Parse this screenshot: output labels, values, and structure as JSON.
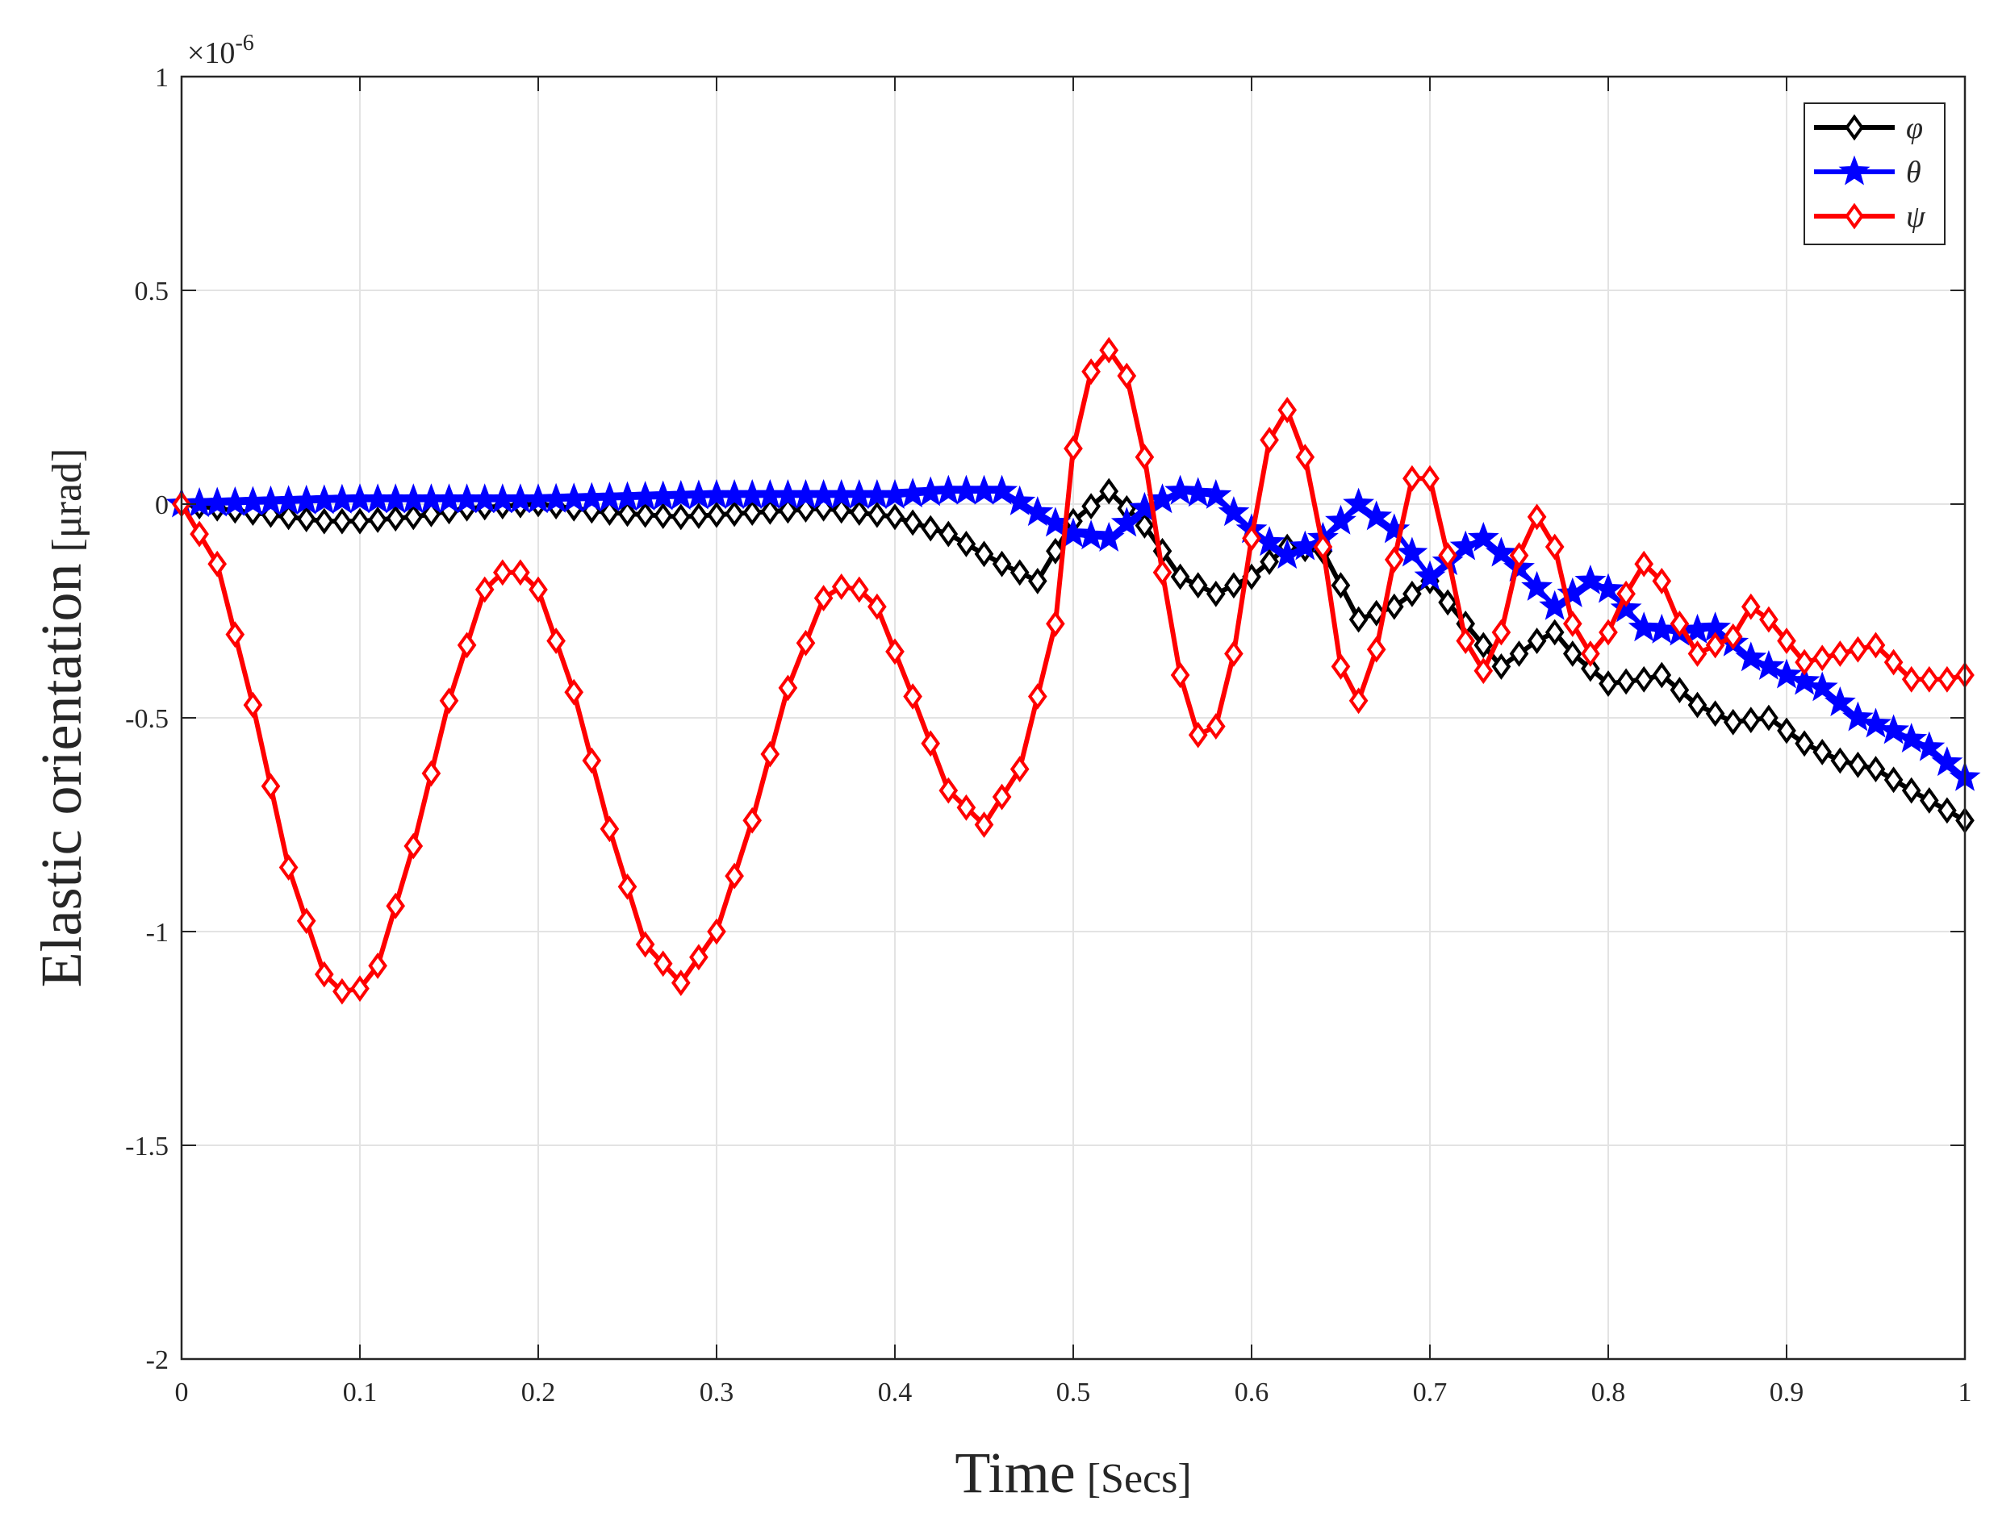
{
  "chart_data": {
    "type": "line",
    "title": "",
    "xlabel_main": "Time",
    "xlabel_unit": "[Secs]",
    "ylabel_main": "Elastic orientation",
    "ylabel_unit": "[μrad]",
    "exponent_label": "×10",
    "exponent_power": "-6",
    "xlim": [
      0,
      1
    ],
    "ylim": [
      -2,
      1
    ],
    "xticks": [
      0,
      0.1,
      0.2,
      0.3,
      0.4,
      0.5,
      0.6,
      0.7,
      0.8,
      0.9,
      1
    ],
    "xtick_labels": [
      "0",
      "0.1",
      "0.2",
      "0.3",
      "0.4",
      "0.5",
      "0.6",
      "0.7",
      "0.8",
      "0.9",
      "1"
    ],
    "yticks": [
      -2,
      -1.5,
      -1,
      -0.5,
      0,
      0.5,
      1
    ],
    "ytick_labels": [
      "-2",
      "-1.5",
      "-1",
      "-0.5",
      "0",
      "0.5",
      "1"
    ],
    "grid": true,
    "legend_position": "top-right",
    "series": [
      {
        "name": "φ",
        "color": "#000000",
        "marker": "diamond",
        "keypoints": [
          [
            0,
            0
          ],
          [
            0.04,
            -0.02
          ],
          [
            0.08,
            -0.04
          ],
          [
            0.1,
            -0.04
          ],
          [
            0.13,
            -0.03
          ],
          [
            0.16,
            -0.01
          ],
          [
            0.2,
            0.0
          ],
          [
            0.24,
            -0.02
          ],
          [
            0.28,
            -0.03
          ],
          [
            0.32,
            -0.02
          ],
          [
            0.36,
            -0.01
          ],
          [
            0.4,
            -0.03
          ],
          [
            0.43,
            -0.07
          ],
          [
            0.46,
            -0.14
          ],
          [
            0.48,
            -0.18
          ],
          [
            0.5,
            -0.04
          ],
          [
            0.52,
            0.03
          ],
          [
            0.54,
            -0.05
          ],
          [
            0.56,
            -0.17
          ],
          [
            0.58,
            -0.21
          ],
          [
            0.6,
            -0.17
          ],
          [
            0.62,
            -0.1
          ],
          [
            0.64,
            -0.11
          ],
          [
            0.66,
            -0.27
          ],
          [
            0.68,
            -0.24
          ],
          [
            0.7,
            -0.18
          ],
          [
            0.72,
            -0.28
          ],
          [
            0.74,
            -0.38
          ],
          [
            0.76,
            -0.32
          ],
          [
            0.77,
            -0.3
          ],
          [
            0.78,
            -0.35
          ],
          [
            0.8,
            -0.42
          ],
          [
            0.82,
            -0.41
          ],
          [
            0.83,
            -0.4
          ],
          [
            0.85,
            -0.47
          ],
          [
            0.87,
            -0.51
          ],
          [
            0.89,
            -0.5
          ],
          [
            0.91,
            -0.56
          ],
          [
            0.93,
            -0.6
          ],
          [
            0.95,
            -0.62
          ],
          [
            0.97,
            -0.67
          ],
          [
            1.0,
            -0.74
          ]
        ]
      },
      {
        "name": "θ",
        "color": "#0000ff",
        "marker": "star",
        "keypoints": [
          [
            0,
            0
          ],
          [
            0.1,
            0.01
          ],
          [
            0.2,
            0.01
          ],
          [
            0.3,
            0.02
          ],
          [
            0.4,
            0.02
          ],
          [
            0.43,
            0.03
          ],
          [
            0.46,
            0.03
          ],
          [
            0.48,
            -0.02
          ],
          [
            0.5,
            -0.07
          ],
          [
            0.52,
            -0.08
          ],
          [
            0.54,
            -0.01
          ],
          [
            0.56,
            0.03
          ],
          [
            0.58,
            0.02
          ],
          [
            0.6,
            -0.06
          ],
          [
            0.62,
            -0.12
          ],
          [
            0.64,
            -0.08
          ],
          [
            0.66,
            0.0
          ],
          [
            0.68,
            -0.06
          ],
          [
            0.7,
            -0.17
          ],
          [
            0.72,
            -0.1
          ],
          [
            0.73,
            -0.08
          ],
          [
            0.75,
            -0.15
          ],
          [
            0.77,
            -0.24
          ],
          [
            0.79,
            -0.18
          ],
          [
            0.8,
            -0.2
          ],
          [
            0.82,
            -0.29
          ],
          [
            0.84,
            -0.3
          ],
          [
            0.86,
            -0.29
          ],
          [
            0.88,
            -0.36
          ],
          [
            0.9,
            -0.4
          ],
          [
            0.92,
            -0.43
          ],
          [
            0.94,
            -0.5
          ],
          [
            0.96,
            -0.53
          ],
          [
            0.98,
            -0.57
          ],
          [
            1.0,
            -0.64
          ]
        ]
      },
      {
        "name": "ψ",
        "color": "#ff0000",
        "marker": "diamond",
        "keypoints": [
          [
            0,
            0
          ],
          [
            0.02,
            -0.14
          ],
          [
            0.04,
            -0.47
          ],
          [
            0.06,
            -0.85
          ],
          [
            0.08,
            -1.1
          ],
          [
            0.095,
            -1.16
          ],
          [
            0.11,
            -1.08
          ],
          [
            0.13,
            -0.8
          ],
          [
            0.15,
            -0.46
          ],
          [
            0.17,
            -0.2
          ],
          [
            0.185,
            -0.14
          ],
          [
            0.2,
            -0.2
          ],
          [
            0.22,
            -0.44
          ],
          [
            0.24,
            -0.76
          ],
          [
            0.26,
            -1.03
          ],
          [
            0.28,
            -1.12
          ],
          [
            0.3,
            -1.0
          ],
          [
            0.32,
            -0.74
          ],
          [
            0.34,
            -0.43
          ],
          [
            0.36,
            -0.22
          ],
          [
            0.375,
            -0.18
          ],
          [
            0.39,
            -0.24
          ],
          [
            0.41,
            -0.45
          ],
          [
            0.43,
            -0.67
          ],
          [
            0.45,
            -0.75
          ],
          [
            0.47,
            -0.62
          ],
          [
            0.49,
            -0.28
          ],
          [
            0.5,
            0.13
          ],
          [
            0.51,
            0.31
          ],
          [
            0.52,
            0.36
          ],
          [
            0.53,
            0.3
          ],
          [
            0.54,
            0.11
          ],
          [
            0.55,
            -0.16
          ],
          [
            0.56,
            -0.4
          ],
          [
            0.57,
            -0.54
          ],
          [
            0.58,
            -0.52
          ],
          [
            0.59,
            -0.35
          ],
          [
            0.6,
            -0.08
          ],
          [
            0.61,
            0.15
          ],
          [
            0.62,
            0.22
          ],
          [
            0.63,
            0.11
          ],
          [
            0.64,
            -0.1
          ],
          [
            0.65,
            -0.38
          ],
          [
            0.66,
            -0.46
          ],
          [
            0.67,
            -0.34
          ],
          [
            0.68,
            -0.13
          ],
          [
            0.69,
            0.06
          ],
          [
            0.7,
            0.06
          ],
          [
            0.71,
            -0.12
          ],
          [
            0.72,
            -0.32
          ],
          [
            0.73,
            -0.39
          ],
          [
            0.74,
            -0.3
          ],
          [
            0.75,
            -0.12
          ],
          [
            0.76,
            -0.03
          ],
          [
            0.77,
            -0.1
          ],
          [
            0.78,
            -0.28
          ],
          [
            0.79,
            -0.35
          ],
          [
            0.8,
            -0.3
          ],
          [
            0.81,
            -0.21
          ],
          [
            0.82,
            -0.14
          ],
          [
            0.83,
            -0.18
          ],
          [
            0.84,
            -0.28
          ],
          [
            0.85,
            -0.35
          ],
          [
            0.87,
            -0.31
          ],
          [
            0.88,
            -0.24
          ],
          [
            0.89,
            -0.27
          ],
          [
            0.91,
            -0.37
          ],
          [
            0.93,
            -0.35
          ],
          [
            0.95,
            -0.33
          ],
          [
            0.97,
            -0.41
          ],
          [
            0.99,
            -0.41
          ],
          [
            1.0,
            -0.4
          ]
        ]
      }
    ]
  }
}
